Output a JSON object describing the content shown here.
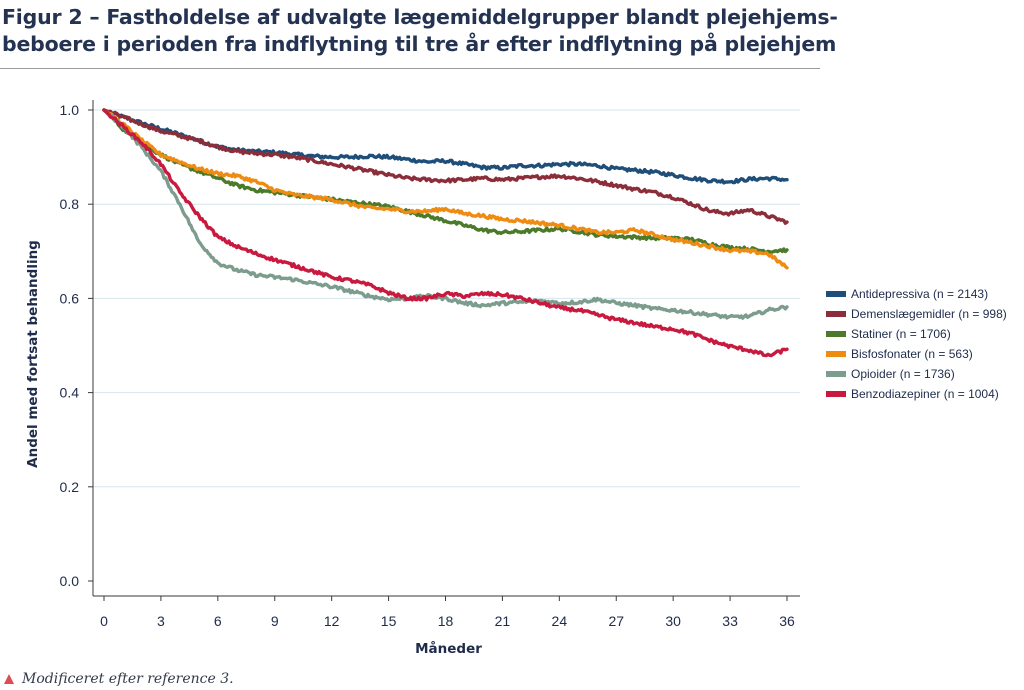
{
  "figure": {
    "title_line1": "Figur 2 – Fastholdelse af udvalgte lægemiddelgrupper blandt plejehjems-",
    "title_line2": "beboere i perioden fra indflytning til tre år efter indflytning på plejehjem",
    "footnote": "Modificeret efter reference 3.",
    "footnote_mark_color": "#e04a55"
  },
  "chart_data": {
    "type": "line",
    "title": "",
    "xlabel": "Måneder",
    "ylabel": "Andel med fortsat behandling",
    "xlim": [
      0,
      36
    ],
    "ylim": [
      0,
      1.0
    ],
    "x_ticks": [
      0,
      3,
      6,
      9,
      12,
      15,
      18,
      21,
      24,
      27,
      30,
      33,
      36
    ],
    "y_ticks": [
      0.0,
      0.2,
      0.4,
      0.6,
      0.8,
      1.0
    ],
    "y_tick_labels": [
      "0.0",
      "0.2",
      "0.4",
      "0.6",
      "0.8",
      "1.0"
    ],
    "grid": "horizontal",
    "legend_position": "right",
    "series": [
      {
        "name": "Antidepressiva (n = 2143)",
        "color": "#1f4e79",
        "x": [
          0,
          1,
          2,
          3,
          4,
          5,
          6,
          7,
          8,
          9,
          10,
          11,
          12,
          13,
          14,
          15,
          16,
          17,
          18,
          19,
          20,
          21,
          22,
          23,
          24,
          25,
          26,
          27,
          28,
          29,
          30,
          31,
          32,
          33,
          34,
          35,
          36
        ],
        "y": [
          1.0,
          0.985,
          0.972,
          0.96,
          0.948,
          0.935,
          0.922,
          0.915,
          0.912,
          0.91,
          0.906,
          0.902,
          0.9,
          0.9,
          0.902,
          0.9,
          0.895,
          0.89,
          0.892,
          0.885,
          0.878,
          0.877,
          0.882,
          0.882,
          0.885,
          0.885,
          0.882,
          0.875,
          0.872,
          0.868,
          0.862,
          0.855,
          0.85,
          0.848,
          0.853,
          0.855,
          0.852
        ]
      },
      {
        "name": "Demenslægemidler (n = 998)",
        "color": "#8b2e3a",
        "x": [
          0,
          1,
          2,
          3,
          4,
          5,
          6,
          7,
          8,
          9,
          10,
          11,
          12,
          13,
          14,
          15,
          16,
          17,
          18,
          19,
          20,
          21,
          22,
          23,
          24,
          25,
          26,
          27,
          28,
          29,
          30,
          31,
          32,
          33,
          34,
          35,
          36
        ],
        "y": [
          1.0,
          0.985,
          0.97,
          0.955,
          0.945,
          0.935,
          0.922,
          0.912,
          0.908,
          0.905,
          0.9,
          0.893,
          0.885,
          0.878,
          0.87,
          0.862,
          0.855,
          0.852,
          0.85,
          0.852,
          0.855,
          0.852,
          0.855,
          0.858,
          0.86,
          0.855,
          0.848,
          0.84,
          0.832,
          0.825,
          0.815,
          0.8,
          0.785,
          0.78,
          0.788,
          0.775,
          0.762
        ]
      },
      {
        "name": "Statiner (n = 1706)",
        "color": "#4a7a2a",
        "x": [
          0,
          1,
          2,
          3,
          4,
          5,
          6,
          7,
          8,
          9,
          10,
          11,
          12,
          13,
          14,
          15,
          16,
          17,
          18,
          19,
          20,
          21,
          22,
          23,
          24,
          25,
          26,
          27,
          28,
          29,
          30,
          31,
          32,
          33,
          34,
          35,
          36
        ],
        "y": [
          1.0,
          0.96,
          0.93,
          0.905,
          0.885,
          0.87,
          0.855,
          0.84,
          0.83,
          0.825,
          0.82,
          0.815,
          0.81,
          0.805,
          0.8,
          0.795,
          0.785,
          0.775,
          0.765,
          0.755,
          0.745,
          0.74,
          0.742,
          0.745,
          0.748,
          0.742,
          0.735,
          0.732,
          0.73,
          0.728,
          0.728,
          0.725,
          0.715,
          0.708,
          0.705,
          0.7,
          0.703
        ]
      },
      {
        "name": "Bisfosfonater (n = 563)",
        "color": "#ee8b12",
        "x": [
          0,
          1,
          2,
          3,
          4,
          5,
          6,
          7,
          8,
          9,
          10,
          11,
          12,
          13,
          14,
          15,
          16,
          17,
          18,
          19,
          20,
          21,
          22,
          23,
          24,
          25,
          26,
          27,
          28,
          29,
          30,
          31,
          32,
          33,
          34,
          35,
          36
        ],
        "y": [
          1.0,
          0.97,
          0.935,
          0.905,
          0.89,
          0.875,
          0.865,
          0.86,
          0.848,
          0.83,
          0.82,
          0.815,
          0.81,
          0.8,
          0.792,
          0.79,
          0.785,
          0.785,
          0.79,
          0.78,
          0.775,
          0.768,
          0.765,
          0.76,
          0.755,
          0.748,
          0.74,
          0.74,
          0.745,
          0.735,
          0.725,
          0.718,
          0.71,
          0.702,
          0.7,
          0.695,
          0.665
        ]
      },
      {
        "name": "Opioider (n = 1736)",
        "color": "#7c9c8e",
        "x": [
          0,
          1,
          2,
          3,
          4,
          5,
          6,
          7,
          8,
          9,
          10,
          11,
          12,
          13,
          14,
          15,
          16,
          17,
          18,
          19,
          20,
          21,
          22,
          23,
          24,
          25,
          26,
          27,
          28,
          29,
          30,
          31,
          32,
          33,
          34,
          35,
          36
        ],
        "y": [
          1.0,
          0.965,
          0.92,
          0.87,
          0.8,
          0.72,
          0.675,
          0.66,
          0.65,
          0.645,
          0.64,
          0.632,
          0.625,
          0.615,
          0.605,
          0.598,
          0.6,
          0.605,
          0.6,
          0.59,
          0.585,
          0.59,
          0.592,
          0.595,
          0.59,
          0.592,
          0.598,
          0.59,
          0.585,
          0.578,
          0.575,
          0.57,
          0.565,
          0.56,
          0.562,
          0.575,
          0.582
        ]
      },
      {
        "name": "Benzodiazepiner (n = 1004)",
        "color": "#c8193e",
        "x": [
          0,
          1,
          2,
          3,
          4,
          5,
          6,
          7,
          8,
          9,
          10,
          11,
          12,
          13,
          14,
          15,
          16,
          17,
          18,
          19,
          20,
          21,
          22,
          23,
          24,
          25,
          26,
          27,
          28,
          29,
          30,
          31,
          32,
          33,
          34,
          35,
          36
        ],
        "y": [
          1.0,
          0.965,
          0.93,
          0.885,
          0.825,
          0.775,
          0.73,
          0.71,
          0.695,
          0.682,
          0.67,
          0.658,
          0.645,
          0.638,
          0.628,
          0.612,
          0.6,
          0.6,
          0.61,
          0.605,
          0.61,
          0.608,
          0.6,
          0.59,
          0.58,
          0.575,
          0.565,
          0.555,
          0.548,
          0.54,
          0.535,
          0.525,
          0.51,
          0.498,
          0.49,
          0.478,
          0.492
        ]
      }
    ]
  }
}
